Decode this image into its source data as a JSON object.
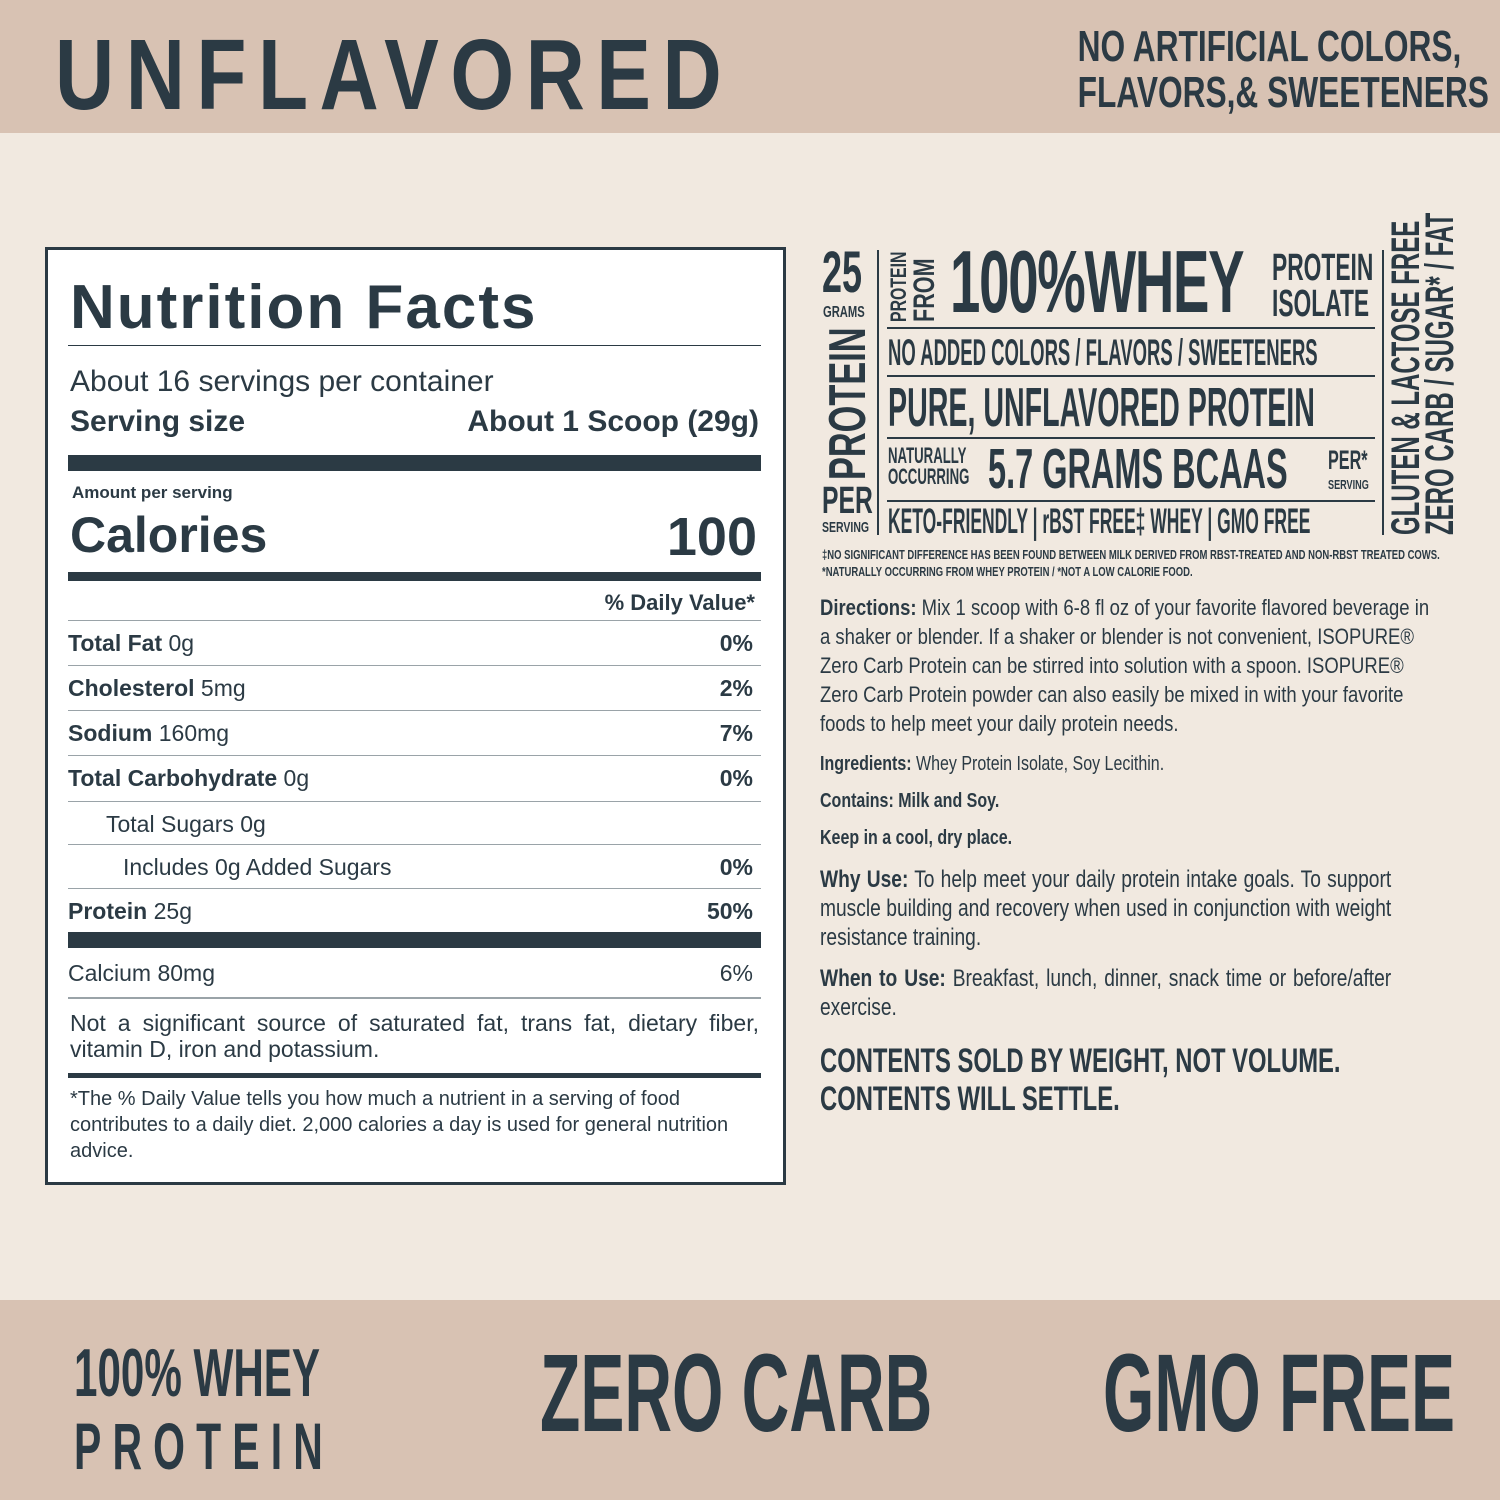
{
  "header": {
    "flavor": "UNFLAVORED",
    "claim_line1": "NO ARTIFICIAL COLORS,",
    "claim_line2": "FLAVORS,& SWEETENERS"
  },
  "colors": {
    "band": "#d8c2b3",
    "background": "#f1e9e0",
    "text": "#2b3a44"
  },
  "nutrition": {
    "title": "Nutrition Facts",
    "servings": "About 16 servings per container",
    "serving_size_label": "Serving size",
    "serving_size_value": "About 1 Scoop (29g)",
    "amount_per_serving": "Amount per serving",
    "calories_label": "Calories",
    "calories_value": "100",
    "dv_header": "% Daily Value*",
    "rows": [
      {
        "name": "Total Fat",
        "amount": "0g",
        "dv": "0%",
        "bold": true,
        "indent": 0
      },
      {
        "name": "Cholesterol",
        "amount": "5mg",
        "dv": "2%",
        "bold": true,
        "indent": 0
      },
      {
        "name": "Sodium",
        "amount": "160mg",
        "dv": "7%",
        "bold": true,
        "indent": 0
      },
      {
        "name": "Total Carbohydrate",
        "amount": "0g",
        "dv": "0%",
        "bold": true,
        "indent": 0
      },
      {
        "name": "Total Sugars 0g",
        "amount": "",
        "dv": "",
        "bold": false,
        "indent": 1
      },
      {
        "name": "Includes 0g Added Sugars",
        "amount": "",
        "dv": "0%",
        "bold": false,
        "indent": 2
      },
      {
        "name": "Protein",
        "amount": "25g",
        "dv": "50%",
        "bold": true,
        "indent": 0
      }
    ],
    "calcium": {
      "name": "Calcium",
      "amount": "80mg",
      "dv": "6%"
    },
    "not_significant": "Not a significant source of saturated fat, trans fat, dietary fiber, vitamin D, iron and potassium.",
    "footnote": "*The % Daily Value tells you how much a nutrient in a serving of food contributes to a daily diet. 2,000 calories a day is used for general nutrition advice."
  },
  "badge": {
    "grams_num": "25",
    "grams": "GRAMS",
    "protein_vert": "PROTEIN",
    "per": "PER",
    "serving": "SERVING",
    "protein_from_1": "PROTEIN",
    "protein_from_2": "FROM",
    "whey": "100%WHEY",
    "isolate_1": "PROTEIN",
    "isolate_2": "ISOLATE",
    "no_added": "NO ADDED COLORS / FLAVORS / SWEETENERS",
    "pure": "PURE, UNFLAVORED PROTEIN",
    "nat_1": "NATURALLY",
    "nat_2": "OCCURRING",
    "bcaas": "5.7 GRAMS BCAAS",
    "per2": "PER*",
    "serving2": "SERVING",
    "keto": "KETO-FRIENDLY",
    "rbst": "rBST FREE‡ WHEY",
    "gmo": "GMO FREE",
    "gluten": "GLUTEN & LACTOSE FREE",
    "zero": "ZERO CARB / SUGAR* / FAT",
    "fn1": "‡NO SIGNIFICANT DIFFERENCE HAS BEEN FOUND BETWEEN MILK DERIVED FROM RBST-TREATED AND NON-RBST TREATED COWS.",
    "fn2": "*NATURALLY OCCURRING FROM WHEY PROTEIN / *NOT A LOW CALORIE FOOD."
  },
  "info": {
    "directions_label": "Directions:",
    "directions": " Mix 1 scoop with 6-8 fl oz of your favorite flavored beverage in a shaker or blender. If a shaker or blender is not convenient, ISOPURE® Zero Carb Protein can be stirred into solution with a spoon. ISOPURE® Zero Carb Protein powder can also easily be mixed in with your favorite foods to help meet your daily protein needs.",
    "ingredients_label": "Ingredients:",
    "ingredients": " Whey Protein Isolate, Soy Lecithin.",
    "contains": "Contains: Milk and Soy.",
    "keep": "Keep in a cool, dry place.",
    "why_label": "Why Use:",
    "why": " To help meet your daily protein intake goals. To support muscle building and recovery when used in conjunction with weight resistance training.",
    "when_label": "When to Use:",
    "when": " Breakfast, lunch, dinner, snack time or before/after exercise.",
    "contents_1": "CONTENTS SOLD BY WEIGHT, NOT VOLUME.",
    "contents_2": "CONTENTS WILL SETTLE."
  },
  "footer": {
    "whey_1": "100% WHEY",
    "whey_2": "PROTEIN",
    "zero_carb": "ZERO CARB",
    "gmo_free": "GMO FREE"
  }
}
